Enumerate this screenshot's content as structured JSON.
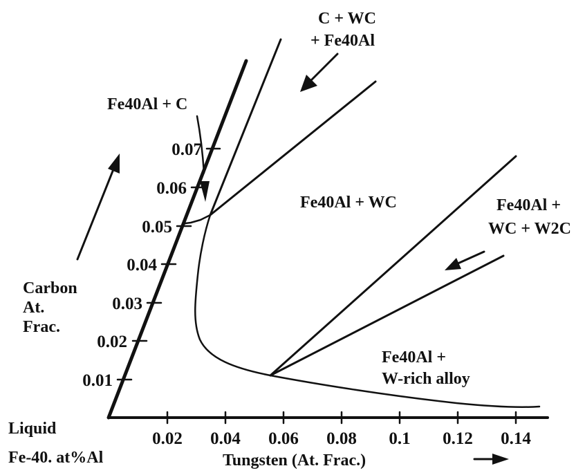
{
  "diagram": {
    "colors": {
      "ink": "#111111",
      "background": "#ffffff"
    },
    "axes": {
      "x_title": "Tungsten (At. Frac.)",
      "y_title": [
        "Carbon",
        "At.",
        "Frac."
      ],
      "x_ticks": [
        "0.02",
        "0.04",
        "0.06",
        "0.08",
        "0.1",
        "0.12",
        "0.14"
      ],
      "y_ticks": [
        "0.01",
        "0.02",
        "0.03",
        "0.04",
        "0.05",
        "0.06",
        "0.07"
      ],
      "origin_labels": [
        "Liquid",
        "Fe-40. at%Al"
      ]
    },
    "regions": {
      "c_wc_fe40al": [
        "C + WC",
        "+ Fe40Al"
      ],
      "fe40al_c": "Fe40Al + C",
      "fe40al_wc": "Fe40Al + WC",
      "fe40al_wc_w2c": [
        "Fe40Al +",
        "WC + W2C"
      ],
      "fe40al_w_rich": [
        "Fe40Al +",
        "W-rich alloy"
      ]
    }
  }
}
